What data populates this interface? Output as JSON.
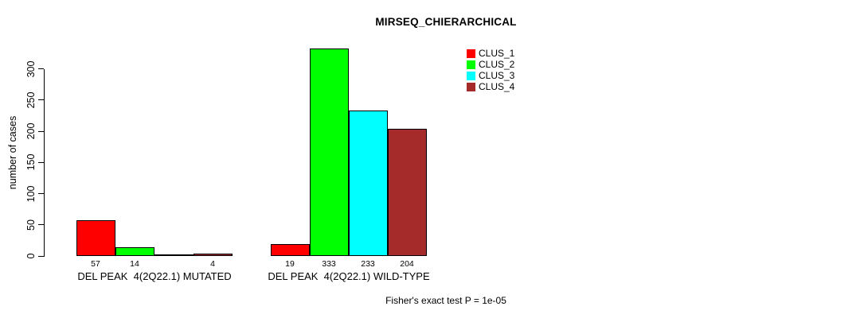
{
  "chart_data": {
    "type": "bar",
    "title": "MIRSEQ_CHIERARCHICAL",
    "ylabel": "number of cases",
    "xlabel": "",
    "categories": [
      "DEL PEAK  4(2Q22.1) MUTATED",
      "DEL PEAK  4(2Q22.1) WILD-TYPE"
    ],
    "series": [
      {
        "name": "CLUS_1",
        "color": "#ff0000",
        "values": [
          57,
          19
        ]
      },
      {
        "name": "CLUS_2",
        "color": "#00ff00",
        "values": [
          14,
          333
        ]
      },
      {
        "name": "CLUS_3",
        "color": "#00ffff",
        "values": [
          0,
          233
        ]
      },
      {
        "name": "CLUS_4",
        "color": "#a52a2a",
        "values": [
          4,
          204
        ]
      }
    ],
    "yticks": [
      0,
      50,
      100,
      150,
      200,
      250,
      300
    ],
    "ylim": [
      0,
      340
    ],
    "grid": false,
    "legend_position": "top-right",
    "bar_value_labels_shown": true,
    "zero_value_labels_hidden": true,
    "annotation": "Fisher's exact test P = 1e-05",
    "background_color": "#ffffff",
    "axis_color": "#000000"
  }
}
